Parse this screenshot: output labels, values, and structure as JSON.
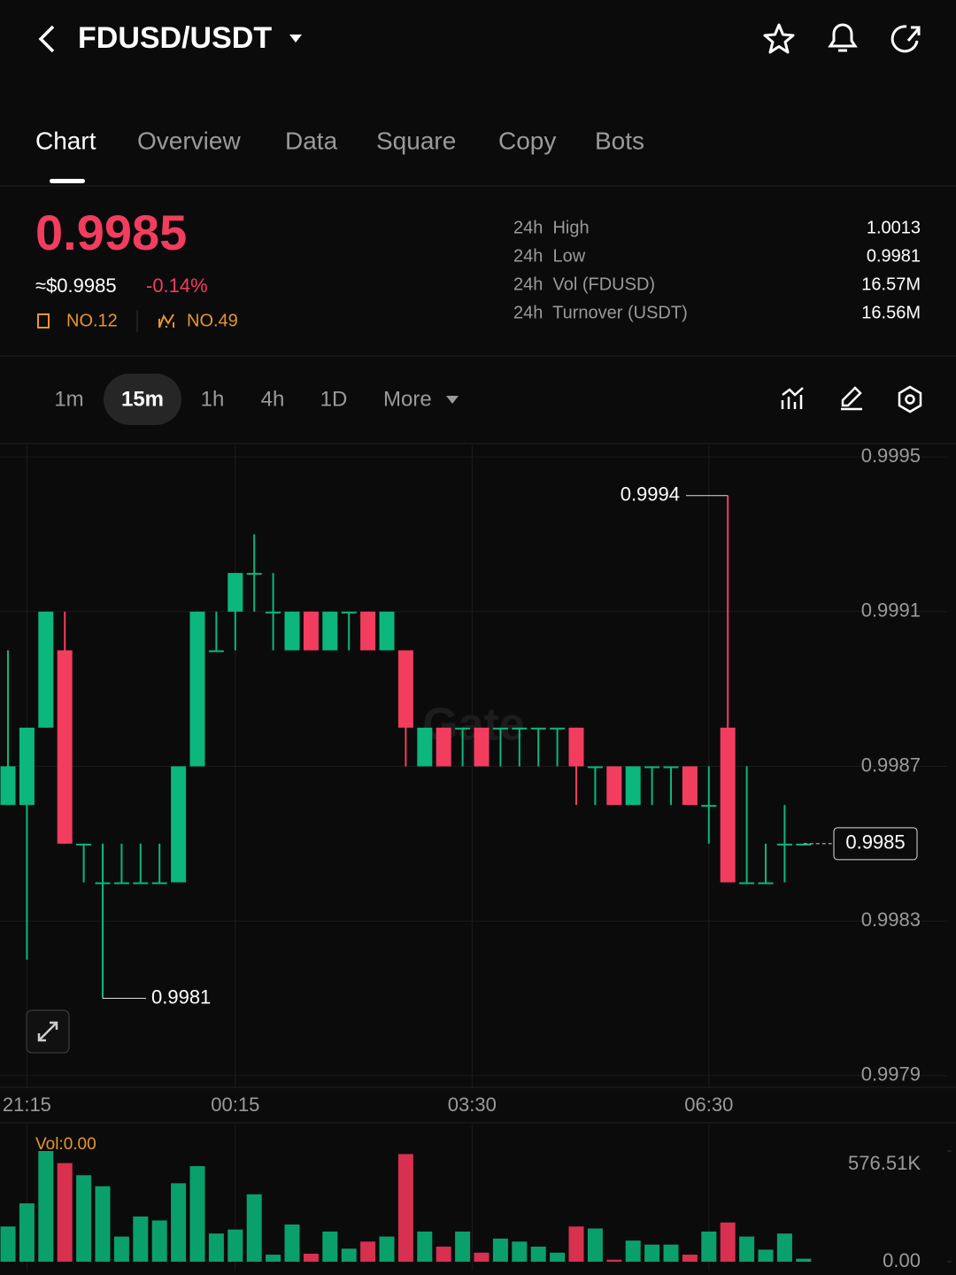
{
  "header": {
    "title": "FDUSD/USDT"
  },
  "tabs": [
    "Chart",
    "Overview",
    "Data",
    "Square",
    "Copy",
    "Bots"
  ],
  "ticker": {
    "price": "0.9985",
    "usd": "≈$0.9985",
    "change": "-0.14%",
    "rank1": "NO.12",
    "rank2": "NO.49"
  },
  "stats": [
    {
      "label": "24h  High",
      "value": "1.0013"
    },
    {
      "label": "24h  Low",
      "value": "0.9981"
    },
    {
      "label": "24h  Vol (FDUSD)",
      "value": "16.57M"
    },
    {
      "label": "24h  Turnover (USDT)",
      "value": "16.56M"
    }
  ],
  "timeframes": [
    "1m",
    "15m",
    "1h",
    "4h",
    "1D"
  ],
  "more": "More",
  "chart_data": {
    "type": "candlestick",
    "watermark": "Gate",
    "up_color": "#0bb77c",
    "down_color": "#f23d5f",
    "open": [
      0.9986,
      0.9986,
      0.9988,
      0.999,
      0.9985,
      0.9984,
      0.9984,
      0.9984,
      0.9984,
      0.9984,
      0.9987,
      0.999,
      0.9991,
      0.9992,
      0.9991,
      0.999,
      0.9991,
      0.999,
      0.9991,
      0.9991,
      0.999,
      0.999,
      0.9987,
      0.9988,
      0.9988,
      0.9988,
      0.9988,
      0.9988,
      0.9988,
      0.9988,
      0.9988,
      0.9987,
      0.9987,
      0.9986,
      0.9987,
      0.9987,
      0.9987,
      0.9986,
      0.9988,
      0.9984,
      0.9984,
      0.9985,
      0.9985
    ],
    "high": [
      0.999,
      0.9988,
      0.9991,
      0.9991,
      0.9985,
      0.9985,
      0.9985,
      0.9985,
      0.9985,
      0.9987,
      0.9991,
      0.9991,
      0.9992,
      0.9993,
      0.9992,
      0.9991,
      0.9991,
      0.9991,
      0.9991,
      0.9991,
      0.9991,
      0.999,
      0.9988,
      0.9988,
      0.9988,
      0.9988,
      0.9988,
      0.9988,
      0.9988,
      0.9988,
      0.9988,
      0.9987,
      0.9987,
      0.9987,
      0.9987,
      0.9987,
      0.9987,
      0.9987,
      0.9994,
      0.9987,
      0.9985,
      0.9986,
      0.9985
    ],
    "low": [
      0.9986,
      0.9982,
      0.9988,
      0.9985,
      0.9984,
      0.9981,
      0.9984,
      0.9984,
      0.9984,
      0.9984,
      0.9987,
      0.999,
      0.999,
      0.9991,
      0.999,
      0.999,
      0.999,
      0.999,
      0.999,
      0.999,
      0.999,
      0.9987,
      0.9987,
      0.9987,
      0.9987,
      0.9987,
      0.9987,
      0.9987,
      0.9987,
      0.9987,
      0.9986,
      0.9986,
      0.9986,
      0.9986,
      0.9986,
      0.9986,
      0.9986,
      0.9985,
      0.9984,
      0.9984,
      0.9984,
      0.9984,
      0.9985
    ],
    "close": [
      0.9987,
      0.9988,
      0.9991,
      0.9985,
      0.9985,
      0.9984,
      0.9984,
      0.9984,
      0.9984,
      0.9987,
      0.9991,
      0.999,
      0.9992,
      0.9992,
      0.9991,
      0.9991,
      0.999,
      0.9991,
      0.9991,
      0.999,
      0.9991,
      0.9988,
      0.9988,
      0.9987,
      0.9988,
      0.9987,
      0.9988,
      0.9988,
      0.9988,
      0.9988,
      0.9987,
      0.9987,
      0.9986,
      0.9987,
      0.9987,
      0.9987,
      0.9986,
      0.9986,
      0.9984,
      0.9984,
      0.9984,
      0.9985,
      0.9985
    ],
    "volume": [
      183400,
      304000,
      576500,
      513600,
      450700,
      393100,
      131000,
      235800,
      214900,
      408800,
      497900,
      146700,
      167700,
      351100,
      36700,
      193900,
      41900,
      157200,
      68100,
      104800,
      131000,
      560800,
      157200,
      78600,
      157200,
      47200,
      120500,
      104800,
      78600,
      47200,
      183400,
      173000,
      10500,
      110100,
      89100,
      89100,
      36700,
      157200,
      204400,
      131000,
      62900,
      146700,
      15700
    ],
    "ylim": [
      0.99787,
      0.99953
    ],
    "yticks": [
      0.9995,
      0.9991,
      0.9987,
      0.9983,
      0.9979
    ],
    "xticks": [
      {
        "value": 1,
        "label": "21:15"
      },
      {
        "value": 12,
        "label": "00:15"
      },
      {
        "value": 24.5,
        "label": "03:30"
      },
      {
        "value": 37,
        "label": "06:30"
      }
    ],
    "high_marker": 0.9994,
    "low_marker": 0.9981,
    "last_price": 0.9985,
    "volume_label": "Vol:0.00",
    "vol_ylim": [
      0,
      576510
    ],
    "vol_yticks": [
      {
        "value": 576510,
        "label": "576.51K"
      },
      {
        "value": 0,
        "label": "0.00"
      }
    ],
    "grid": true
  }
}
